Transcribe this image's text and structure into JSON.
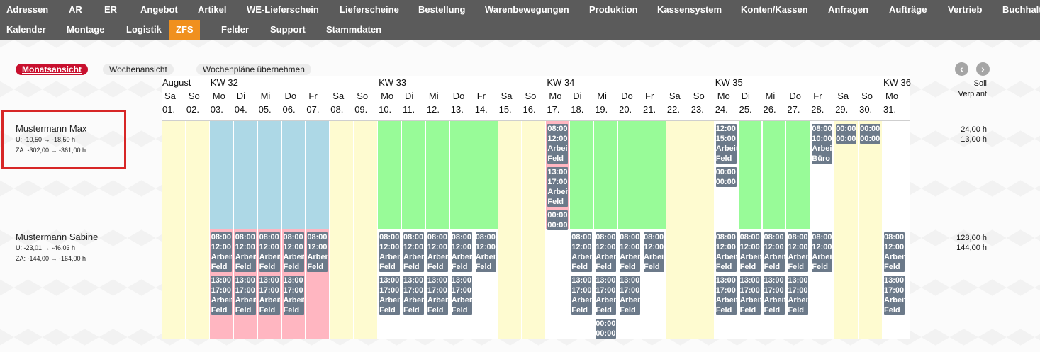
{
  "nav": {
    "row1": [
      "Adressen",
      "AR",
      "ER",
      "Angebot",
      "Artikel",
      "WE-Lieferschein",
      "Lieferscheine",
      "Bestellung",
      "Warenbewegungen",
      "Produktion",
      "Kassensystem",
      "Konten/Kassen",
      "Anfragen",
      "Aufträge",
      "Vertrieb",
      "Buchhalt"
    ],
    "row2": [
      "Kalender",
      "Montage",
      "Logistik",
      "ZFS",
      "Felder",
      "Support",
      "Stammdaten"
    ],
    "active": "ZFS"
  },
  "views": {
    "month": "Monatsansicht",
    "week": "Wochenansicht",
    "adopt": "Wochenpläne übernehmen"
  },
  "icons": {
    "prev": "chevron-left-icon",
    "next": "chevron-right-icon"
  },
  "month_label": "August",
  "weeks": [
    "KW 32",
    "KW 33",
    "KW 34",
    "KW 35",
    "KW 36"
  ],
  "days": [
    {
      "dn": "Sa",
      "dt": "01."
    },
    {
      "dn": "So",
      "dt": "02."
    },
    {
      "dn": "Mo",
      "dt": "03."
    },
    {
      "dn": "Di",
      "dt": "04."
    },
    {
      "dn": "Mi",
      "dt": "05."
    },
    {
      "dn": "Do",
      "dt": "06."
    },
    {
      "dn": "Fr",
      "dt": "07."
    },
    {
      "dn": "Sa",
      "dt": "08."
    },
    {
      "dn": "So",
      "dt": "09."
    },
    {
      "dn": "Mo",
      "dt": "10."
    },
    {
      "dn": "Di",
      "dt": "11."
    },
    {
      "dn": "Mi",
      "dt": "12."
    },
    {
      "dn": "Do",
      "dt": "13."
    },
    {
      "dn": "Fr",
      "dt": "14."
    },
    {
      "dn": "Sa",
      "dt": "15."
    },
    {
      "dn": "So",
      "dt": "16."
    },
    {
      "dn": "Mo",
      "dt": "17."
    },
    {
      "dn": "Di",
      "dt": "18."
    },
    {
      "dn": "Mi",
      "dt": "19."
    },
    {
      "dn": "Do",
      "dt": "20."
    },
    {
      "dn": "Fr",
      "dt": "21."
    },
    {
      "dn": "Sa",
      "dt": "22."
    },
    {
      "dn": "So",
      "dt": "23."
    },
    {
      "dn": "Mo",
      "dt": "24."
    },
    {
      "dn": "Di",
      "dt": "25."
    },
    {
      "dn": "Mi",
      "dt": "26."
    },
    {
      "dn": "Do",
      "dt": "27."
    },
    {
      "dn": "Fr",
      "dt": "28."
    },
    {
      "dn": "Sa",
      "dt": "29."
    },
    {
      "dn": "So",
      "dt": "30."
    },
    {
      "dn": "Mo",
      "dt": "31."
    }
  ],
  "soll_header": [
    "Soll",
    "Verplant"
  ],
  "employees": [
    {
      "name": "Mustermann Max",
      "u": "U: -10,50 → -18,50 h",
      "za": "ZA: -302,00 → -361,00 h",
      "soll": "24,00 h",
      "verplant": "13,00 h",
      "colors": [
        "y",
        "y",
        "b",
        "b",
        "b",
        "b",
        "b",
        "y",
        "y",
        "g",
        "g",
        "g",
        "g",
        "g",
        "y",
        "y",
        "p",
        "g",
        "g",
        "g",
        "g",
        "y",
        "y",
        "w",
        "g",
        "g",
        "g",
        "w",
        "y",
        "y",
        "w"
      ],
      "events": [
        {
          "day": 16,
          "slot": 0,
          "lines": [
            "08:00",
            "12:00",
            "Arbeit",
            "Feld"
          ]
        },
        {
          "day": 16,
          "slot": 1,
          "lines": [
            "13:00",
            "17:00",
            "Arbeit",
            "Feld"
          ]
        },
        {
          "day": 16,
          "slot": 2,
          "lines": [
            "00:00",
            "00:00"
          ]
        },
        {
          "day": 23,
          "slot": 0,
          "lines": [
            "12:00",
            "15:00",
            "Arbeit",
            "Feld"
          ]
        },
        {
          "day": 23,
          "slot": 1,
          "lines": [
            "00:00",
            "00:00"
          ]
        },
        {
          "day": 27,
          "slot": 0,
          "lines": [
            "08:00",
            "10:00",
            "Arbeit",
            "Büro"
          ]
        },
        {
          "day": 28,
          "slot": 0,
          "lines": [
            "00:00",
            "00:00"
          ]
        },
        {
          "day": 29,
          "slot": 0,
          "lines": [
            "00:00",
            "00:00"
          ]
        }
      ]
    },
    {
      "name": "Mustermann Sabine",
      "u": "U: -23,01 → -46,03 h",
      "za": "ZA: -144,00 → -164,00 h",
      "soll": "128,00 h",
      "verplant": "144,00 h",
      "colors": [
        "y",
        "y",
        "p",
        "p",
        "p",
        "p",
        "p",
        "y",
        "y",
        "w",
        "w",
        "w",
        "w",
        "w",
        "y",
        "y",
        "w",
        "w",
        "w",
        "w",
        "w",
        "y",
        "y",
        "w",
        "w",
        "w",
        "w",
        "w",
        "y",
        "y",
        "w"
      ],
      "events": [
        {
          "day": 2,
          "slot": 0,
          "lines": [
            "08:00",
            "12:00",
            "Arbeit",
            "Feld"
          ]
        },
        {
          "day": 2,
          "slot": 1,
          "lines": [
            "13:00",
            "17:00",
            "Arbeit",
            "Feld"
          ]
        },
        {
          "day": 3,
          "slot": 0,
          "lines": [
            "08:00",
            "12:00",
            "Arbeit",
            "Feld"
          ]
        },
        {
          "day": 3,
          "slot": 1,
          "lines": [
            "13:00",
            "17:00",
            "Arbeit",
            "Feld"
          ]
        },
        {
          "day": 4,
          "slot": 0,
          "lines": [
            "08:00",
            "12:00",
            "Arbeit",
            "Feld"
          ]
        },
        {
          "day": 4,
          "slot": 1,
          "lines": [
            "13:00",
            "17:00",
            "Arbeit",
            "Feld"
          ]
        },
        {
          "day": 5,
          "slot": 0,
          "lines": [
            "08:00",
            "12:00",
            "Arbeit",
            "Feld"
          ]
        },
        {
          "day": 5,
          "slot": 1,
          "lines": [
            "13:00",
            "17:00",
            "Arbeit",
            "Feld"
          ]
        },
        {
          "day": 6,
          "slot": 0,
          "lines": [
            "08:00",
            "12:00",
            "Arbeit",
            "Feld"
          ]
        },
        {
          "day": 9,
          "slot": 0,
          "lines": [
            "08:00",
            "12:00",
            "Arbeit",
            "Feld"
          ]
        },
        {
          "day": 9,
          "slot": 1,
          "lines": [
            "13:00",
            "17:00",
            "Arbeit",
            "Feld"
          ]
        },
        {
          "day": 10,
          "slot": 0,
          "lines": [
            "08:00",
            "12:00",
            "Arbeit",
            "Feld"
          ]
        },
        {
          "day": 10,
          "slot": 1,
          "lines": [
            "13:00",
            "17:00",
            "Arbeit",
            "Feld"
          ]
        },
        {
          "day": 11,
          "slot": 0,
          "lines": [
            "08:00",
            "12:00",
            "Arbeit",
            "Feld"
          ]
        },
        {
          "day": 11,
          "slot": 1,
          "lines": [
            "13:00",
            "17:00",
            "Arbeit",
            "Feld"
          ]
        },
        {
          "day": 12,
          "slot": 0,
          "lines": [
            "08:00",
            "12:00",
            "Arbeit",
            "Feld"
          ]
        },
        {
          "day": 12,
          "slot": 1,
          "lines": [
            "13:00",
            "17:00",
            "Arbeit",
            "Feld"
          ]
        },
        {
          "day": 13,
          "slot": 0,
          "lines": [
            "08:00",
            "12:00",
            "Arbeit",
            "Feld"
          ]
        },
        {
          "day": 17,
          "slot": 0,
          "lines": [
            "08:00",
            "12:00",
            "Arbeit",
            "Feld"
          ]
        },
        {
          "day": 17,
          "slot": 1,
          "lines": [
            "13:00",
            "17:00",
            "Arbeit",
            "Feld"
          ]
        },
        {
          "day": 18,
          "slot": 0,
          "lines": [
            "08:00",
            "12:00",
            "Arbeit",
            "Feld"
          ]
        },
        {
          "day": 18,
          "slot": 1,
          "lines": [
            "13:00",
            "17:00",
            "Arbeit",
            "Feld"
          ]
        },
        {
          "day": 18,
          "slot": 2,
          "lines": [
            "00:00",
            "00:00"
          ]
        },
        {
          "day": 19,
          "slot": 0,
          "lines": [
            "08:00",
            "12:00",
            "Arbeit",
            "Feld"
          ]
        },
        {
          "day": 19,
          "slot": 1,
          "lines": [
            "13:00",
            "17:00",
            "Arbeit",
            "Feld"
          ]
        },
        {
          "day": 20,
          "slot": 0,
          "lines": [
            "08:00",
            "12:00",
            "Arbeit",
            "Feld"
          ]
        },
        {
          "day": 23,
          "slot": 0,
          "lines": [
            "08:00",
            "12:00",
            "Arbeit",
            "Feld"
          ]
        },
        {
          "day": 23,
          "slot": 1,
          "lines": [
            "13:00",
            "17:00",
            "Arbeit",
            "Feld"
          ]
        },
        {
          "day": 24,
          "slot": 0,
          "lines": [
            "08:00",
            "12:00",
            "Arbeit",
            "Feld"
          ]
        },
        {
          "day": 24,
          "slot": 1,
          "lines": [
            "13:00",
            "17:00",
            "Arbeit",
            "Feld"
          ]
        },
        {
          "day": 25,
          "slot": 0,
          "lines": [
            "08:00",
            "12:00",
            "Arbeit",
            "Feld"
          ]
        },
        {
          "day": 25,
          "slot": 1,
          "lines": [
            "13:00",
            "17:00",
            "Arbeit",
            "Feld"
          ]
        },
        {
          "day": 26,
          "slot": 0,
          "lines": [
            "08:00",
            "12:00",
            "Arbeit",
            "Feld"
          ]
        },
        {
          "day": 26,
          "slot": 1,
          "lines": [
            "13:00",
            "17:00",
            "Arbeit",
            "Feld"
          ]
        },
        {
          "day": 27,
          "slot": 0,
          "lines": [
            "08:00",
            "12:00",
            "Arbeit",
            "Feld"
          ]
        },
        {
          "day": 30,
          "slot": 0,
          "lines": [
            "08:00",
            "12:00",
            "Arbeit",
            "Feld"
          ]
        },
        {
          "day": 30,
          "slot": 1,
          "lines": [
            "13:00",
            "17:00",
            "Arbeit",
            "Feld"
          ]
        }
      ]
    }
  ]
}
